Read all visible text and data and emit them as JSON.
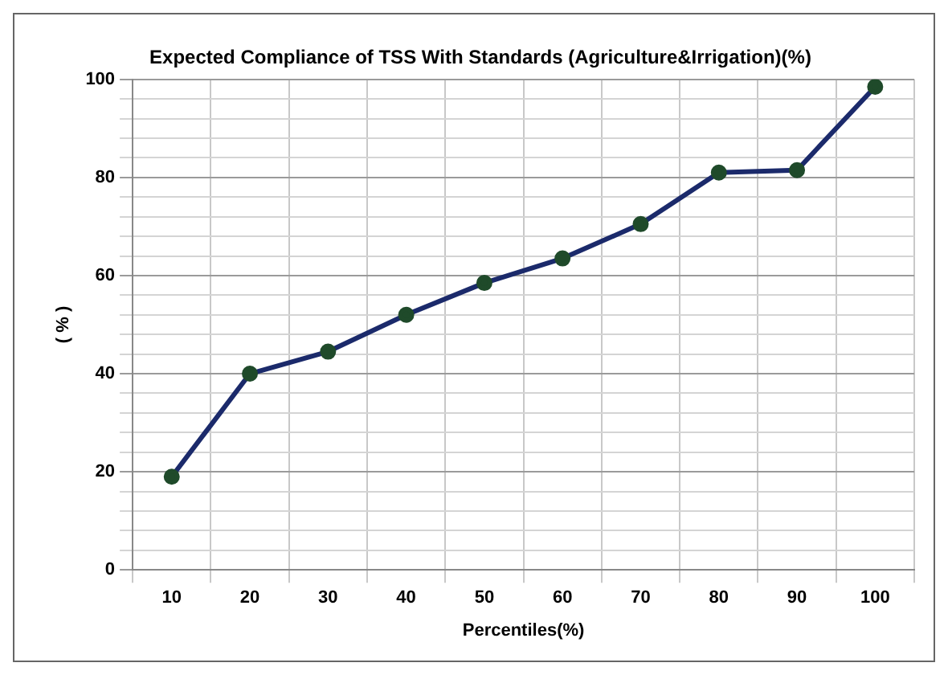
{
  "chart_data": {
    "type": "line",
    "title": "Expected Compliance of TSS With Standards (Agriculture&Irrigation)(%)",
    "xlabel": "Percentiles(%)",
    "ylabel": "( % )",
    "categories": [
      "10",
      "20",
      "30",
      "40",
      "50",
      "60",
      "70",
      "80",
      "90",
      "100"
    ],
    "series": [
      {
        "color": "#1b2a6b",
        "values": [
          19,
          40,
          44.5,
          52,
          58.5,
          63.5,
          70.5,
          81,
          81.5,
          98.5
        ]
      }
    ],
    "ylim": [
      0,
      100
    ],
    "yticks": [
      0,
      {
        "value": 4,
        "label": null
      },
      {
        "value": 8,
        "label": null
      },
      {
        "value": 12,
        "label": null
      },
      {
        "value": 16,
        "label": null
      },
      20,
      {
        "value": 24,
        "label": null
      },
      {
        "value": 28,
        "label": null
      },
      {
        "value": 32,
        "label": null
      },
      {
        "value": 36,
        "label": null
      },
      40,
      {
        "value": 44,
        "label": null
      },
      {
        "value": 48,
        "label": null
      },
      {
        "value": 52,
        "label": null
      },
      {
        "value": 56,
        "label": null
      },
      60,
      {
        "value": 64,
        "label": null
      },
      {
        "value": 68,
        "label": null
      },
      {
        "value": 72,
        "label": null
      },
      {
        "value": 76,
        "label": null
      },
      80,
      {
        "value": 84,
        "label": null
      },
      {
        "value": 88,
        "label": null
      },
      {
        "value": 92,
        "label": null
      },
      {
        "value": 96,
        "label": null
      },
      100
    ],
    "grid": true,
    "legend": false,
    "marker": "circle",
    "line_style": "solid"
  }
}
